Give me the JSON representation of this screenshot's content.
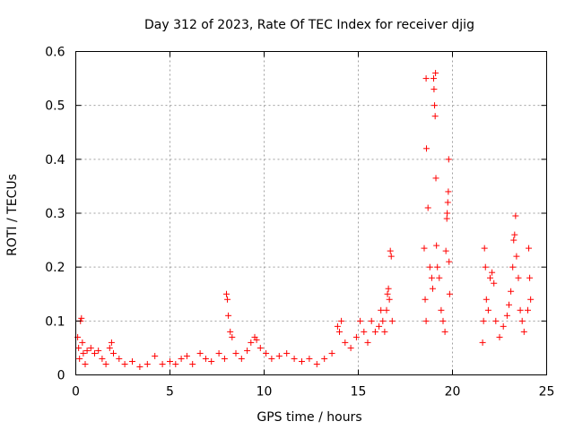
{
  "chart_data": {
    "type": "scatter",
    "title": "Day 312 of 2023, Rate Of TEC Index for receiver djig",
    "xlabel": "GPS time / hours",
    "ylabel": "ROTI / TECUs",
    "xlim": [
      0,
      25
    ],
    "ylim": [
      0,
      0.6
    ],
    "xticks": [
      0,
      5,
      10,
      15,
      20,
      25
    ],
    "xtick_labels": [
      "0",
      "5",
      "10",
      "15",
      "20",
      "25"
    ],
    "yticks": [
      0,
      0.1,
      0.2,
      0.3,
      0.4,
      0.5,
      0.6
    ],
    "ytick_labels": [
      "0",
      "0.1",
      "0.2",
      "0.3",
      "0.4",
      "0.5",
      "0.6"
    ],
    "grid": true,
    "marker": "+",
    "color": "#ff0000",
    "series": [
      {
        "name": "ROTI",
        "points": [
          [
            0.1,
            0.07
          ],
          [
            0.15,
            0.05
          ],
          [
            0.2,
            0.03
          ],
          [
            0.25,
            0.1
          ],
          [
            0.3,
            0.105
          ],
          [
            0.35,
            0.06
          ],
          [
            0.4,
            0.04
          ],
          [
            0.5,
            0.02
          ],
          [
            0.6,
            0.045
          ],
          [
            0.8,
            0.05
          ],
          [
            1.0,
            0.04
          ],
          [
            1.2,
            0.045
          ],
          [
            1.4,
            0.03
          ],
          [
            1.6,
            0.02
          ],
          [
            1.8,
            0.05
          ],
          [
            1.9,
            0.06
          ],
          [
            2.0,
            0.04
          ],
          [
            2.3,
            0.03
          ],
          [
            2.6,
            0.02
          ],
          [
            3.0,
            0.025
          ],
          [
            3.4,
            0.015
          ],
          [
            3.8,
            0.02
          ],
          [
            4.2,
            0.035
          ],
          [
            4.6,
            0.02
          ],
          [
            5.0,
            0.025
          ],
          [
            5.3,
            0.02
          ],
          [
            5.6,
            0.03
          ],
          [
            5.9,
            0.035
          ],
          [
            6.2,
            0.02
          ],
          [
            6.6,
            0.04
          ],
          [
            6.9,
            0.03
          ],
          [
            7.2,
            0.025
          ],
          [
            7.6,
            0.04
          ],
          [
            7.9,
            0.03
          ],
          [
            8.0,
            0.15
          ],
          [
            8.05,
            0.14
          ],
          [
            8.1,
            0.11
          ],
          [
            8.2,
            0.08
          ],
          [
            8.3,
            0.07
          ],
          [
            8.5,
            0.04
          ],
          [
            8.8,
            0.03
          ],
          [
            9.1,
            0.045
          ],
          [
            9.3,
            0.06
          ],
          [
            9.5,
            0.07
          ],
          [
            9.6,
            0.065
          ],
          [
            9.8,
            0.05
          ],
          [
            10.1,
            0.04
          ],
          [
            10.4,
            0.03
          ],
          [
            10.8,
            0.035
          ],
          [
            11.2,
            0.04
          ],
          [
            11.6,
            0.03
          ],
          [
            12.0,
            0.025
          ],
          [
            12.4,
            0.03
          ],
          [
            12.8,
            0.02
          ],
          [
            13.2,
            0.03
          ],
          [
            13.6,
            0.04
          ],
          [
            13.9,
            0.09
          ],
          [
            14.0,
            0.08
          ],
          [
            14.1,
            0.1
          ],
          [
            14.3,
            0.06
          ],
          [
            14.6,
            0.05
          ],
          [
            14.9,
            0.07
          ],
          [
            15.1,
            0.1
          ],
          [
            15.3,
            0.08
          ],
          [
            15.5,
            0.06
          ],
          [
            15.7,
            0.1
          ],
          [
            15.9,
            0.08
          ],
          [
            16.1,
            0.09
          ],
          [
            16.2,
            0.12
          ],
          [
            16.3,
            0.1
          ],
          [
            16.4,
            0.08
          ],
          [
            16.5,
            0.12
          ],
          [
            16.55,
            0.15
          ],
          [
            16.6,
            0.16
          ],
          [
            16.65,
            0.14
          ],
          [
            16.7,
            0.23
          ],
          [
            16.75,
            0.22
          ],
          [
            16.8,
            0.1
          ],
          [
            18.5,
            0.235
          ],
          [
            18.55,
            0.14
          ],
          [
            18.6,
            0.1
          ],
          [
            18.6,
            0.55
          ],
          [
            18.62,
            0.42
          ],
          [
            18.7,
            0.31
          ],
          [
            18.8,
            0.2
          ],
          [
            18.9,
            0.18
          ],
          [
            18.95,
            0.16
          ],
          [
            19.0,
            0.55
          ],
          [
            19.02,
            0.53
          ],
          [
            19.05,
            0.5
          ],
          [
            19.08,
            0.48
          ],
          [
            19.1,
            0.56
          ],
          [
            19.12,
            0.365
          ],
          [
            19.15,
            0.24
          ],
          [
            19.2,
            0.2
          ],
          [
            19.3,
            0.18
          ],
          [
            19.4,
            0.12
          ],
          [
            19.5,
            0.1
          ],
          [
            19.6,
            0.08
          ],
          [
            19.65,
            0.23
          ],
          [
            19.7,
            0.29
          ],
          [
            19.72,
            0.3
          ],
          [
            19.75,
            0.32
          ],
          [
            19.78,
            0.34
          ],
          [
            19.8,
            0.4
          ],
          [
            19.82,
            0.21
          ],
          [
            19.85,
            0.15
          ],
          [
            21.6,
            0.06
          ],
          [
            21.65,
            0.1
          ],
          [
            21.7,
            0.235
          ],
          [
            21.75,
            0.2
          ],
          [
            21.8,
            0.14
          ],
          [
            21.9,
            0.12
          ],
          [
            22.0,
            0.18
          ],
          [
            22.1,
            0.19
          ],
          [
            22.2,
            0.17
          ],
          [
            22.3,
            0.1
          ],
          [
            22.5,
            0.07
          ],
          [
            22.7,
            0.09
          ],
          [
            22.9,
            0.11
          ],
          [
            23.0,
            0.13
          ],
          [
            23.1,
            0.155
          ],
          [
            23.2,
            0.2
          ],
          [
            23.25,
            0.25
          ],
          [
            23.3,
            0.26
          ],
          [
            23.35,
            0.295
          ],
          [
            23.4,
            0.22
          ],
          [
            23.5,
            0.18
          ],
          [
            23.6,
            0.12
          ],
          [
            23.7,
            0.1
          ],
          [
            23.8,
            0.08
          ],
          [
            24.0,
            0.12
          ],
          [
            24.05,
            0.235
          ],
          [
            24.1,
            0.18
          ],
          [
            24.15,
            0.14
          ]
        ]
      }
    ]
  }
}
